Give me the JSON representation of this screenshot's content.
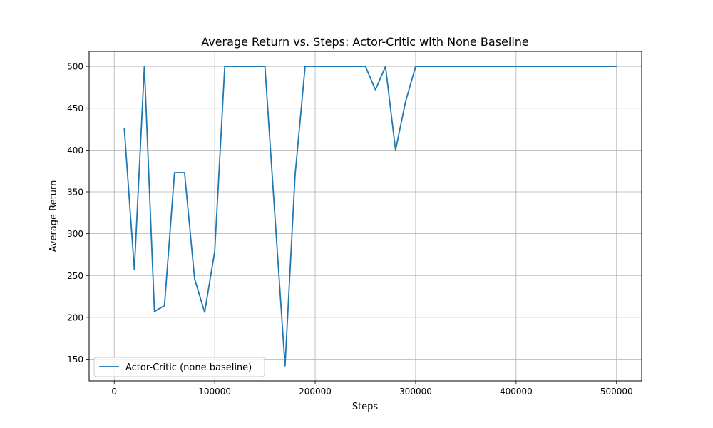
{
  "chart_data": {
    "type": "line",
    "title": "Average Return vs. Steps: Actor-Critic with None Baseline",
    "xlabel": "Steps",
    "ylabel": "Average Return",
    "xlim": [
      -25000,
      525000
    ],
    "ylim": [
      124,
      518
    ],
    "grid": true,
    "legend_position": "lower-left",
    "x_ticks": [
      0,
      100000,
      200000,
      300000,
      400000,
      500000
    ],
    "x_tick_labels": [
      "0",
      "100000",
      "200000",
      "300000",
      "400000",
      "500000"
    ],
    "y_ticks": [
      150,
      200,
      250,
      300,
      350,
      400,
      450,
      500
    ],
    "y_tick_labels": [
      "150",
      "200",
      "250",
      "300",
      "350",
      "400",
      "450",
      "500"
    ],
    "series": [
      {
        "name": "Actor-Critic (none baseline)",
        "color": "#1f77b4",
        "x": [
          10000,
          20000,
          30000,
          40000,
          50000,
          60000,
          70000,
          80000,
          90000,
          100000,
          110000,
          120000,
          130000,
          140000,
          150000,
          160000,
          170000,
          180000,
          190000,
          200000,
          210000,
          220000,
          230000,
          240000,
          250000,
          260000,
          270000,
          280000,
          290000,
          300000,
          310000,
          320000,
          330000,
          340000,
          350000,
          360000,
          370000,
          380000,
          390000,
          400000,
          410000,
          420000,
          430000,
          440000,
          450000,
          460000,
          470000,
          480000,
          490000,
          500000
        ],
        "y": [
          426,
          257,
          500,
          207,
          214,
          373,
          373,
          246,
          206,
          279,
          500,
          500,
          500,
          500,
          500,
          320,
          142,
          370,
          500,
          500,
          500,
          500,
          500,
          500,
          500,
          472,
          500,
          400,
          458,
          500,
          500,
          500,
          500,
          500,
          500,
          500,
          500,
          500,
          500,
          500,
          500,
          500,
          500,
          500,
          500,
          500,
          500,
          500,
          500,
          500
        ]
      }
    ]
  }
}
